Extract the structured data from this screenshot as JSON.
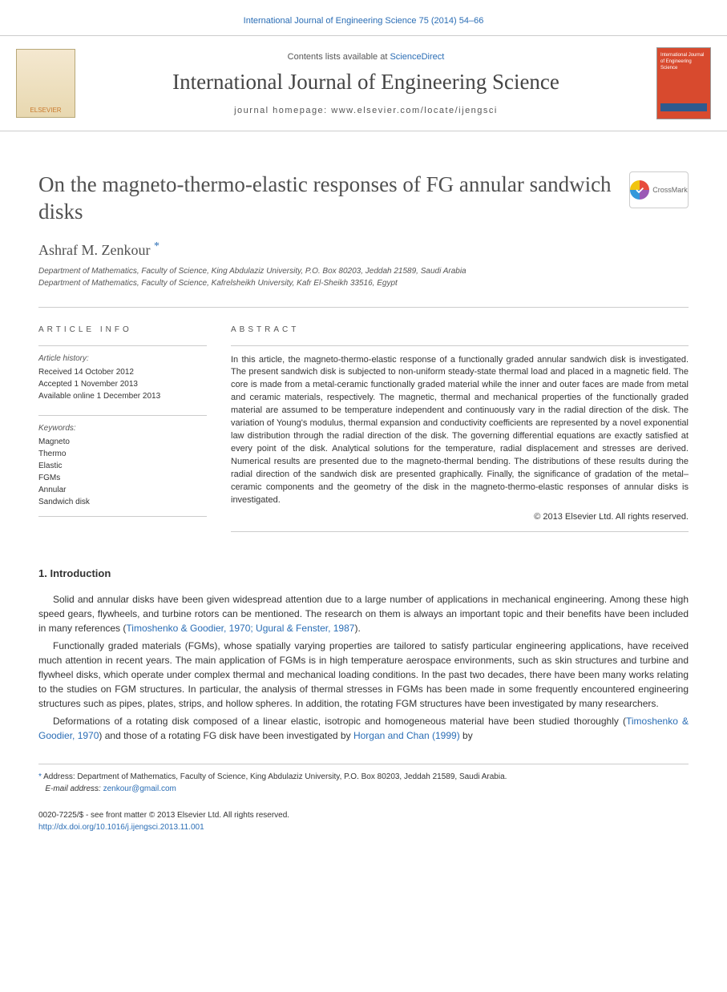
{
  "citation": "International Journal of Engineering Science 75 (2014) 54–66",
  "masthead": {
    "elsevier": "ELSEVIER",
    "contents_prefix": "Contents lists available at ",
    "contents_link": "ScienceDirect",
    "journal_title": "International Journal of Engineering Science",
    "homepage_prefix": "journal homepage: ",
    "homepage_url": "www.elsevier.com/locate/ijengsci",
    "cover_text": "International Journal of Engineering Science"
  },
  "article": {
    "title": "On the magneto-thermo-elastic responses of FG annular sandwich disks",
    "crossmark": "CrossMark",
    "author_name": "Ashraf M. Zenkour",
    "author_marker": "*",
    "affiliations": [
      "Department of Mathematics, Faculty of Science, King Abdulaziz University, P.O. Box 80203, Jeddah 21589, Saudi Arabia",
      "Department of Mathematics, Faculty of Science, Kafrelsheikh University, Kafr El-Sheikh 33516, Egypt"
    ]
  },
  "info": {
    "heading": "ARTICLE INFO",
    "history_label": "Article history:",
    "history": [
      "Received 14 October 2012",
      "Accepted 1 November 2013",
      "Available online 1 December 2013"
    ],
    "keywords_label": "Keywords:",
    "keywords": [
      "Magneto",
      "Thermo",
      "Elastic",
      "FGMs",
      "Annular",
      "Sandwich disk"
    ]
  },
  "abstract": {
    "heading": "ABSTRACT",
    "text": "In this article, the magneto-thermo-elastic response of a functionally graded annular sandwich disk is investigated. The present sandwich disk is subjected to non-uniform steady-state thermal load and placed in a magnetic field. The core is made from a metal-ceramic functionally graded material while the inner and outer faces are made from metal and ceramic materials, respectively. The magnetic, thermal and mechanical properties of the functionally graded material are assumed to be temperature independent and continuously vary in the radial direction of the disk. The variation of Young's modulus, thermal expansion and conductivity coefficients are represented by a novel exponential law distribution through the radial direction of the disk. The governing differential equations are exactly satisfied at every point of the disk. Analytical solutions for the temperature, radial displacement and stresses are derived. Numerical results are presented due to the magneto-thermal bending. The distributions of these results during the radial direction of the sandwich disk are presented graphically. Finally, the significance of gradation of the metal–ceramic components and the geometry of the disk in the magneto-thermo-elastic responses of annular disks is investigated.",
    "copyright": "© 2013 Elsevier Ltd. All rights reserved."
  },
  "intro": {
    "heading": "1. Introduction",
    "p1_a": "Solid and annular disks have been given widespread attention due to a large number of applications in mechanical engineering. Among these high speed gears, flywheels, and turbine rotors can be mentioned. The research on them is always an important topic and their benefits have been included in many references (",
    "p1_ref": "Timoshenko & Goodier, 1970; Ugural & Fenster, 1987",
    "p1_b": ").",
    "p2": "Functionally graded materials (FGMs), whose spatially varying properties are tailored to satisfy particular engineering applications, have received much attention in recent years. The main application of FGMs is in high temperature aerospace environments, such as skin structures and turbine and flywheel disks, which operate under complex thermal and mechanical loading conditions. In the past two decades, there have been many works relating to the studies on FGM structures. In particular, the analysis of thermal stresses in FGMs has been made in some frequently encountered engineering structures such as pipes, plates, strips, and hollow spheres. In addition, the rotating FGM structures have been investigated by many researchers.",
    "p3_a": "Deformations of a rotating disk composed of a linear elastic, isotropic and homogeneous material have been studied thoroughly (",
    "p3_ref1": "Timoshenko & Goodier, 1970",
    "p3_b": ") and those of a rotating FG disk have been investigated by ",
    "p3_ref2": "Horgan and Chan (1999)",
    "p3_c": " by"
  },
  "footnote": {
    "marker": "*",
    "address_label": "Address: ",
    "address": "Department of Mathematics, Faculty of Science, King Abdulaziz University, P.O. Box 80203, Jeddah 21589, Saudi Arabia.",
    "email_label": "E-mail address: ",
    "email": "zenkour@gmail.com"
  },
  "footer": {
    "issn": "0020-7225/$ - see front matter © 2013 Elsevier Ltd. All rights reserved.",
    "doi": "http://dx.doi.org/10.1016/j.ijengsci.2013.11.001"
  },
  "colors": {
    "link": "#2a6db5",
    "text": "#333333",
    "heading": "#505050",
    "border": "#cccccc"
  }
}
